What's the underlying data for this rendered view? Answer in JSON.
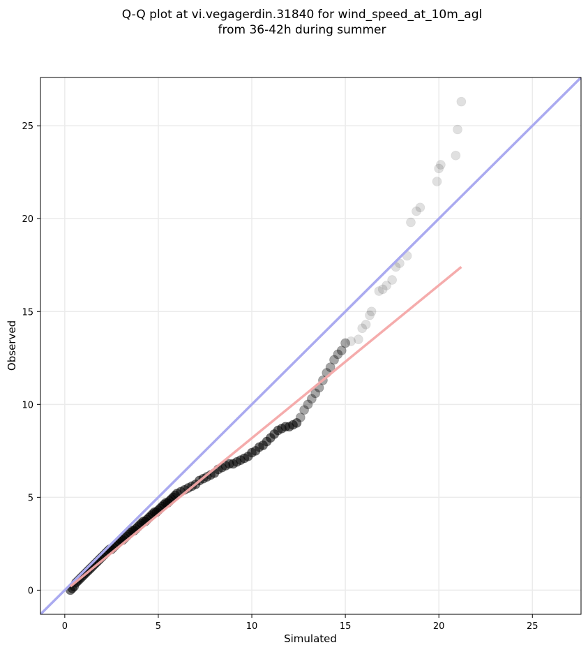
{
  "chart_data": {
    "type": "scatter",
    "title": "Q-Q plot at vi.vegagerdin.31840 for wind_speed_at_10m_agl",
    "subtitle": "from 36-42h during summer",
    "xlabel": "Simulated",
    "ylabel": "Observed",
    "xlim": [
      -1.3,
      27.6
    ],
    "ylim": [
      -1.3,
      27.6
    ],
    "xticks": [
      0,
      5,
      10,
      15,
      20,
      25
    ],
    "yticks": [
      0,
      5,
      10,
      15,
      20,
      25
    ],
    "grid": true,
    "colors": {
      "points": "#000000",
      "identity_line": "#aaaaf0",
      "fit_line": "#f4a8a8"
    },
    "identity_line": {
      "x": [
        -1.3,
        27.6
      ],
      "y": [
        -1.3,
        27.6
      ]
    },
    "fit_line": {
      "x": [
        0.3,
        21.2
      ],
      "y": [
        0.2,
        17.4
      ]
    },
    "points": [
      [
        0.3,
        0.0
      ],
      [
        0.4,
        0.1
      ],
      [
        0.5,
        0.2
      ],
      [
        0.6,
        0.4
      ],
      [
        0.7,
        0.5
      ],
      [
        0.8,
        0.6
      ],
      [
        0.9,
        0.7
      ],
      [
        1.0,
        0.8
      ],
      [
        1.1,
        0.9
      ],
      [
        1.2,
        1.0
      ],
      [
        1.3,
        1.1
      ],
      [
        1.4,
        1.2
      ],
      [
        1.5,
        1.3
      ],
      [
        1.6,
        1.4
      ],
      [
        1.7,
        1.5
      ],
      [
        1.8,
        1.6
      ],
      [
        1.9,
        1.7
      ],
      [
        2.0,
        1.8
      ],
      [
        2.1,
        1.9
      ],
      [
        2.2,
        2.0
      ],
      [
        2.3,
        2.1
      ],
      [
        2.4,
        2.2
      ],
      [
        2.5,
        2.2
      ],
      [
        2.6,
        2.3
      ],
      [
        2.7,
        2.4
      ],
      [
        2.8,
        2.5
      ],
      [
        2.9,
        2.6
      ],
      [
        3.0,
        2.7
      ],
      [
        3.1,
        2.7
      ],
      [
        3.2,
        2.8
      ],
      [
        3.3,
        2.9
      ],
      [
        3.4,
        3.0
      ],
      [
        3.5,
        3.1
      ],
      [
        3.6,
        3.2
      ],
      [
        3.7,
        3.2
      ],
      [
        3.8,
        3.3
      ],
      [
        3.9,
        3.4
      ],
      [
        4.0,
        3.5
      ],
      [
        4.1,
        3.6
      ],
      [
        4.2,
        3.7
      ],
      [
        4.3,
        3.7
      ],
      [
        4.4,
        3.8
      ],
      [
        4.5,
        3.9
      ],
      [
        4.6,
        4.0
      ],
      [
        4.7,
        4.1
      ],
      [
        4.8,
        4.2
      ],
      [
        4.9,
        4.2
      ],
      [
        5.0,
        4.3
      ],
      [
        5.1,
        4.4
      ],
      [
        5.2,
        4.5
      ],
      [
        5.3,
        4.6
      ],
      [
        5.4,
        4.7
      ],
      [
        5.5,
        4.7
      ],
      [
        5.6,
        4.8
      ],
      [
        5.7,
        4.9
      ],
      [
        5.8,
        5.0
      ],
      [
        5.9,
        5.1
      ],
      [
        6.0,
        5.2
      ],
      [
        6.2,
        5.3
      ],
      [
        6.4,
        5.4
      ],
      [
        6.6,
        5.5
      ],
      [
        6.8,
        5.6
      ],
      [
        7.0,
        5.7
      ],
      [
        7.2,
        5.9
      ],
      [
        7.4,
        6.0
      ],
      [
        7.6,
        6.1
      ],
      [
        7.8,
        6.2
      ],
      [
        8.0,
        6.3
      ],
      [
        8.2,
        6.5
      ],
      [
        8.4,
        6.6
      ],
      [
        8.6,
        6.7
      ],
      [
        8.8,
        6.8
      ],
      [
        9.0,
        6.8
      ],
      [
        9.2,
        6.9
      ],
      [
        9.4,
        7.0
      ],
      [
        9.6,
        7.1
      ],
      [
        9.8,
        7.2
      ],
      [
        10.0,
        7.4
      ],
      [
        10.2,
        7.5
      ],
      [
        10.4,
        7.7
      ],
      [
        10.6,
        7.8
      ],
      [
        10.8,
        8.0
      ],
      [
        11.0,
        8.2
      ],
      [
        11.2,
        8.4
      ],
      [
        11.4,
        8.6
      ],
      [
        11.6,
        8.7
      ],
      [
        11.8,
        8.8
      ],
      [
        12.0,
        8.8
      ],
      [
        12.2,
        8.9
      ],
      [
        12.4,
        9.0
      ],
      [
        12.6,
        9.3
      ],
      [
        12.8,
        9.7
      ],
      [
        13.0,
        10.0
      ],
      [
        13.2,
        10.3
      ],
      [
        13.4,
        10.6
      ],
      [
        13.6,
        10.9
      ],
      [
        13.8,
        11.3
      ],
      [
        14.0,
        11.7
      ],
      [
        14.2,
        12.0
      ],
      [
        14.4,
        12.4
      ],
      [
        14.6,
        12.7
      ],
      [
        14.8,
        12.9
      ],
      [
        15.0,
        13.3
      ],
      [
        15.3,
        13.4
      ],
      [
        15.7,
        13.5
      ],
      [
        15.9,
        14.1
      ],
      [
        16.1,
        14.3
      ],
      [
        16.3,
        14.8
      ],
      [
        16.4,
        15.0
      ],
      [
        16.8,
        16.1
      ],
      [
        17.0,
        16.2
      ],
      [
        17.2,
        16.4
      ],
      [
        17.5,
        16.7
      ],
      [
        17.7,
        17.4
      ],
      [
        17.9,
        17.6
      ],
      [
        18.3,
        18.0
      ],
      [
        18.5,
        19.8
      ],
      [
        18.8,
        20.4
      ],
      [
        19.0,
        20.6
      ],
      [
        19.9,
        22.0
      ],
      [
        20.0,
        22.7
      ],
      [
        20.1,
        22.9
      ],
      [
        20.9,
        23.4
      ],
      [
        21.0,
        24.8
      ],
      [
        21.2,
        26.3
      ]
    ]
  }
}
